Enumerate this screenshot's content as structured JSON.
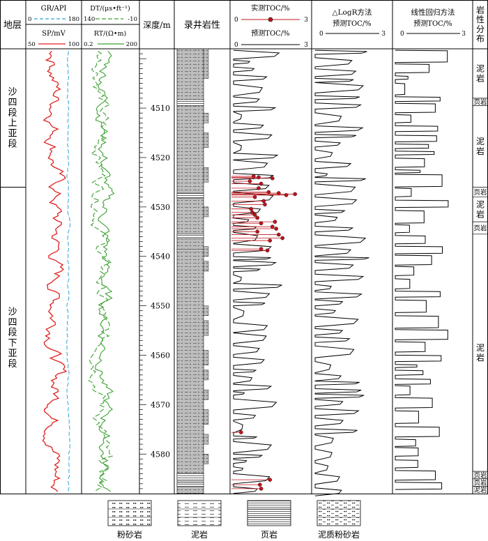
{
  "chart_data": {
    "type": "well-log",
    "tracks": {
      "formation": {
        "header": "地层",
        "zones": [
          {
            "label": "沙四段上亚段",
            "top": 4498,
            "bottom": 4526
          },
          {
            "label": "沙四段下亚段",
            "top": 4526,
            "bottom": 4587
          }
        ]
      },
      "gr_sp": {
        "gr": {
          "label": "GR/API",
          "min": "0",
          "max": "180",
          "color": "#2aa5d8"
        },
        "sp": {
          "label": "SP/mV",
          "min": "50",
          "max": "100",
          "color": "#e02020"
        }
      },
      "dt_rt": {
        "dt": {
          "label": "DT/(μs•ft⁻¹)",
          "min": "140",
          "max": "-10",
          "color": "#3aa030"
        },
        "rt": {
          "label": "RT/(Ω•m)",
          "min": "0.2",
          "max": "200",
          "color": "#3aa030"
        }
      },
      "depth": {
        "header": "深度/m",
        "ticks": [
          "4510",
          "4520",
          "4530",
          "4540",
          "4550",
          "4560",
          "4570",
          "4580"
        ]
      },
      "lithology_log": {
        "header": "录井岩性"
      },
      "toc": {
        "measured_label": "实测TOC/%",
        "predicted_label": "预测TOC/%",
        "min": "0",
        "max": "3",
        "measured_color": "#c0141c"
      },
      "logr": {
        "title": "△LogR方法",
        "subtitle": "预测TOC/%",
        "min": "0",
        "max": "3"
      },
      "linear": {
        "title": "线性回归方法",
        "subtitle": "预测TOC/%",
        "min": "0",
        "max": "3"
      },
      "lith_dist": {
        "header": "岩性分布",
        "zones": [
          {
            "label": "泥岩",
            "top": 4498,
            "bottom": 4508
          },
          {
            "label": "页岩",
            "top": 4508,
            "bottom": 4509.5
          },
          {
            "label": "泥岩",
            "top": 4509.5,
            "bottom": 4526
          },
          {
            "label": "页岩",
            "top": 4526,
            "bottom": 4528
          },
          {
            "label": "泥岩",
            "top": 4528,
            "bottom": 4533
          },
          {
            "label": "页岩",
            "top": 4533,
            "bottom": 4535.5
          },
          {
            "label": "泥岩",
            "top": 4535.5,
            "bottom": 4583.5
          },
          {
            "label": "页岩",
            "top": 4583.5,
            "bottom": 4585
          },
          {
            "label": "页岩",
            "top": 4585,
            "bottom": 4586.5
          },
          {
            "label": "泥岩",
            "top": 4586.5,
            "bottom": 4588
          }
        ]
      }
    },
    "depth_range": [
      4498,
      4588
    ],
    "measured_toc": [
      {
        "depth": 4523.8,
        "toc": 0.8
      },
      {
        "depth": 4524.0,
        "toc": 1.0
      },
      {
        "depth": 4524.2,
        "toc": 1.55
      },
      {
        "depth": 4524.8,
        "toc": 0.65
      },
      {
        "depth": 4525.3,
        "toc": 1.1
      },
      {
        "depth": 4526.2,
        "toc": 1.0
      },
      {
        "depth": 4527.0,
        "toc": 1.4
      },
      {
        "depth": 4527.2,
        "toc": 1.8
      },
      {
        "depth": 4527.4,
        "toc": 2.45
      },
      {
        "depth": 4527.6,
        "toc": 2.1
      },
      {
        "depth": 4528.0,
        "toc": 0.85
      },
      {
        "depth": 4528.8,
        "toc": 1.2
      },
      {
        "depth": 4529.5,
        "toc": 1.25
      },
      {
        "depth": 4530.4,
        "toc": 0.7
      },
      {
        "depth": 4531.1,
        "toc": 0.75
      },
      {
        "depth": 4531.6,
        "toc": 0.85
      },
      {
        "depth": 4532.2,
        "toc": 0.95
      },
      {
        "depth": 4533.0,
        "toc": 1.65
      },
      {
        "depth": 4533.3,
        "toc": 1.1
      },
      {
        "depth": 4534.0,
        "toc": 1.55
      },
      {
        "depth": 4534.4,
        "toc": 1.7
      },
      {
        "depth": 4535.0,
        "toc": 0.95
      },
      {
        "depth": 4535.6,
        "toc": 1.8
      },
      {
        "depth": 4536.3,
        "toc": 1.95
      },
      {
        "depth": 4536.8,
        "toc": 1.45
      },
      {
        "depth": 4538.5,
        "toc": 1.1
      },
      {
        "depth": 4538.8,
        "toc": 1.35
      },
      {
        "depth": 4575.6,
        "toc": 0.3
      },
      {
        "depth": 4585.2,
        "toc": 1.45
      },
      {
        "depth": 4586.2,
        "toc": 1.05
      },
      {
        "depth": 4587.0,
        "toc": 1.1
      }
    ]
  },
  "legend": [
    {
      "label": "粉砂岩",
      "pattern": "silt"
    },
    {
      "label": "泥岩",
      "pattern": "mud"
    },
    {
      "label": "页岩",
      "pattern": "shale"
    },
    {
      "label": "泥质粉砂岩",
      "pattern": "muddysilt"
    }
  ]
}
